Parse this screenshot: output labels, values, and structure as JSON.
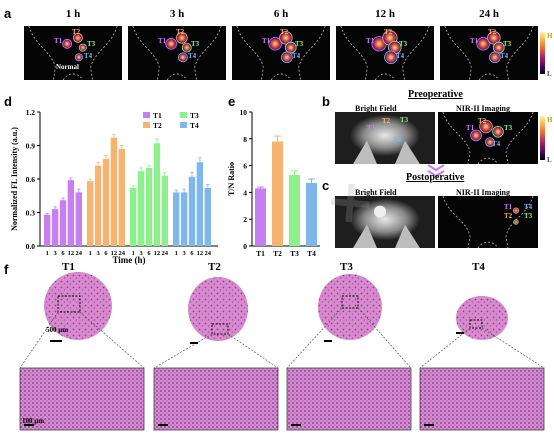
{
  "panel_letters": {
    "a": "a",
    "b": "b",
    "c": "c",
    "d": "d",
    "e": "e",
    "f": "f"
  },
  "panel_a": {
    "time_labels": [
      "1 h",
      "3 h",
      "6 h",
      "12 h",
      "24 h"
    ],
    "overlay_labels": {
      "t1": "T1",
      "t2": "T2",
      "t3": "T3",
      "t4": "T4",
      "normal": "Normal"
    },
    "colorbar": {
      "high": "H",
      "low": "L"
    }
  },
  "panel_b": {
    "heading": "Preoperative",
    "bright_field": "Bright Field",
    "nir": "NIR-II Imaging",
    "labels": {
      "t1": "T1",
      "t2": "T2",
      "t3": "T3",
      "t4": "T4"
    }
  },
  "panel_c": {
    "heading": "Postoperative",
    "bright_field": "Bright Field",
    "nir": "NIR-II Imaging",
    "labels": {
      "t1": "T1",
      "t2": "T2",
      "t3": "T3",
      "t4": "T4"
    }
  },
  "panel_f": {
    "tumor_labels": [
      "T1",
      "T2",
      "T3",
      "T4"
    ],
    "scale_large": "500 μm",
    "scale_small": "100 μm"
  },
  "colors": {
    "T1": "#c77ef0",
    "T2": "#f5b46f",
    "T3": "#8df08d",
    "T4": "#7fb6ec",
    "he_stain": "#d77cc8"
  },
  "chart_data": [
    {
      "type": "bar",
      "xlabel": "Time (h)",
      "ylabel": "Normalized FL Intensity (a.u.)",
      "ylim": [
        0.0,
        1.2
      ],
      "yticks": [
        "0.0",
        "0.3",
        "0.6",
        "0.9",
        "1.2"
      ],
      "categories": [
        "1",
        "3",
        "6",
        "12",
        "24"
      ],
      "legend_placement": "top-right",
      "series": [
        {
          "name": "T1",
          "values": [
            0.28,
            0.33,
            0.41,
            0.59,
            0.48
          ]
        },
        {
          "name": "T2",
          "values": [
            0.58,
            0.72,
            0.78,
            0.97,
            0.87
          ]
        },
        {
          "name": "T3",
          "values": [
            0.52,
            0.67,
            0.7,
            0.92,
            0.63
          ]
        },
        {
          "name": "T4",
          "values": [
            0.48,
            0.48,
            0.62,
            0.75,
            0.52
          ]
        }
      ],
      "errors": [
        [
          0.01,
          0.02,
          0.02,
          0.02,
          0.03
        ],
        [
          0.02,
          0.03,
          0.03,
          0.03,
          0.03
        ],
        [
          0.02,
          0.03,
          0.02,
          0.04,
          0.03
        ],
        [
          0.02,
          0.03,
          0.04,
          0.04,
          0.03
        ]
      ]
    },
    {
      "type": "bar",
      "xlabel": "",
      "ylabel": "T/N Ratio",
      "ylim": [
        0,
        10
      ],
      "yticks": [
        "0",
        "2",
        "4",
        "6",
        "8",
        "10"
      ],
      "categories": [
        "T1",
        "T2",
        "T3",
        "T4"
      ],
      "values": [
        4.3,
        7.8,
        5.3,
        4.7
      ],
      "errors": [
        0.1,
        0.4,
        0.3,
        0.3
      ]
    }
  ]
}
